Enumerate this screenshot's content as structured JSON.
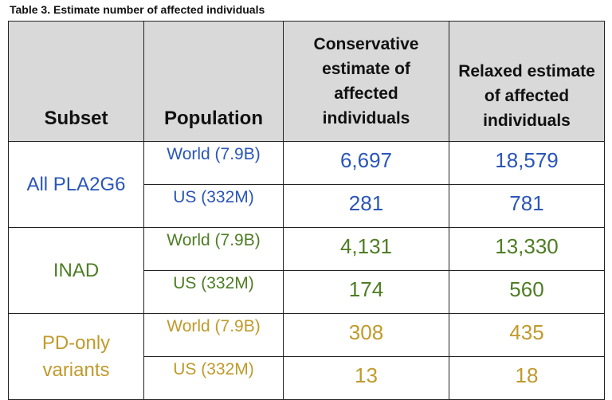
{
  "caption": "Table 3. Estimate number of affected individuals",
  "headers": {
    "subset": "Subset",
    "population": "Population",
    "conservative": [
      "Conservative",
      "estimate of",
      "affected",
      "individuals"
    ],
    "relaxed": [
      "Relaxed estimate",
      "of affected",
      "individuals"
    ]
  },
  "groups": [
    {
      "subset": [
        "All PLA2G6"
      ],
      "color": "#2a56b8",
      "rows": [
        {
          "population": "World (7.9B)",
          "conservative": "6,697",
          "relaxed": "18,579"
        },
        {
          "population": "US (332M)",
          "conservative": "281",
          "relaxed": "781"
        }
      ]
    },
    {
      "subset": [
        "INAD"
      ],
      "color": "#4e7d24",
      "rows": [
        {
          "population": "World (7.9B)",
          "conservative": "4,131",
          "relaxed": "13,330"
        },
        {
          "population": "US (332M)",
          "conservative": "174",
          "relaxed": "560"
        }
      ]
    },
    {
      "subset": [
        "PD-only",
        "variants"
      ],
      "color": "#c09a2c",
      "rows": [
        {
          "population": "World (7.9B)",
          "conservative": "308",
          "relaxed": "435"
        },
        {
          "population": "US (332M)",
          "conservative": "13",
          "relaxed": "18"
        }
      ]
    }
  ]
}
